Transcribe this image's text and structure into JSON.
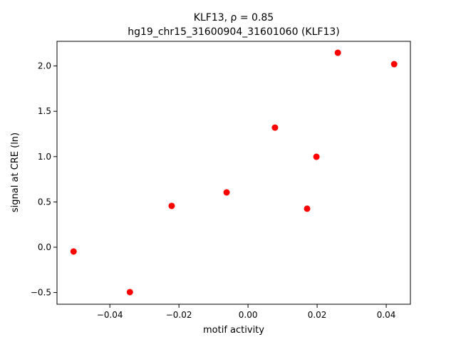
{
  "chart_data": {
    "type": "scatter",
    "title": "KLF13, ρ = 0.85",
    "subtitle": "hg19_chr15_31600904_31601060 (KLF13)",
    "x_label": "motif activity",
    "y_label": "signal at CRE (ln)",
    "color": "#ff0000",
    "x": [
      -0.0505,
      -0.0342,
      -0.0221,
      -0.0062,
      0.0078,
      0.0171,
      0.0198,
      0.026,
      0.0423
    ],
    "values": [
      -0.047,
      -0.495,
      0.456,
      0.605,
      1.32,
      0.425,
      0.998,
      2.146,
      2.02
    ],
    "xlim": [
      -0.0553,
      0.047
    ],
    "ylim": [
      -0.629,
      2.272
    ],
    "xticks": [
      {
        "value": -0.04,
        "label": "−0.04"
      },
      {
        "value": -0.02,
        "label": "−0.02"
      },
      {
        "value": 0,
        "label": "0.00"
      },
      {
        "value": 0.02,
        "label": "0.02"
      },
      {
        "value": 0.04,
        "label": "0.04"
      }
    ],
    "yticks": [
      {
        "value": -0.5,
        "label": "−0.5"
      },
      {
        "value": 0,
        "label": "0.0"
      },
      0.5,
      {
        "value": 1,
        "label": "1.0"
      },
      1.5,
      {
        "value": 2,
        "label": "2.0"
      }
    ],
    "grid": false
  }
}
